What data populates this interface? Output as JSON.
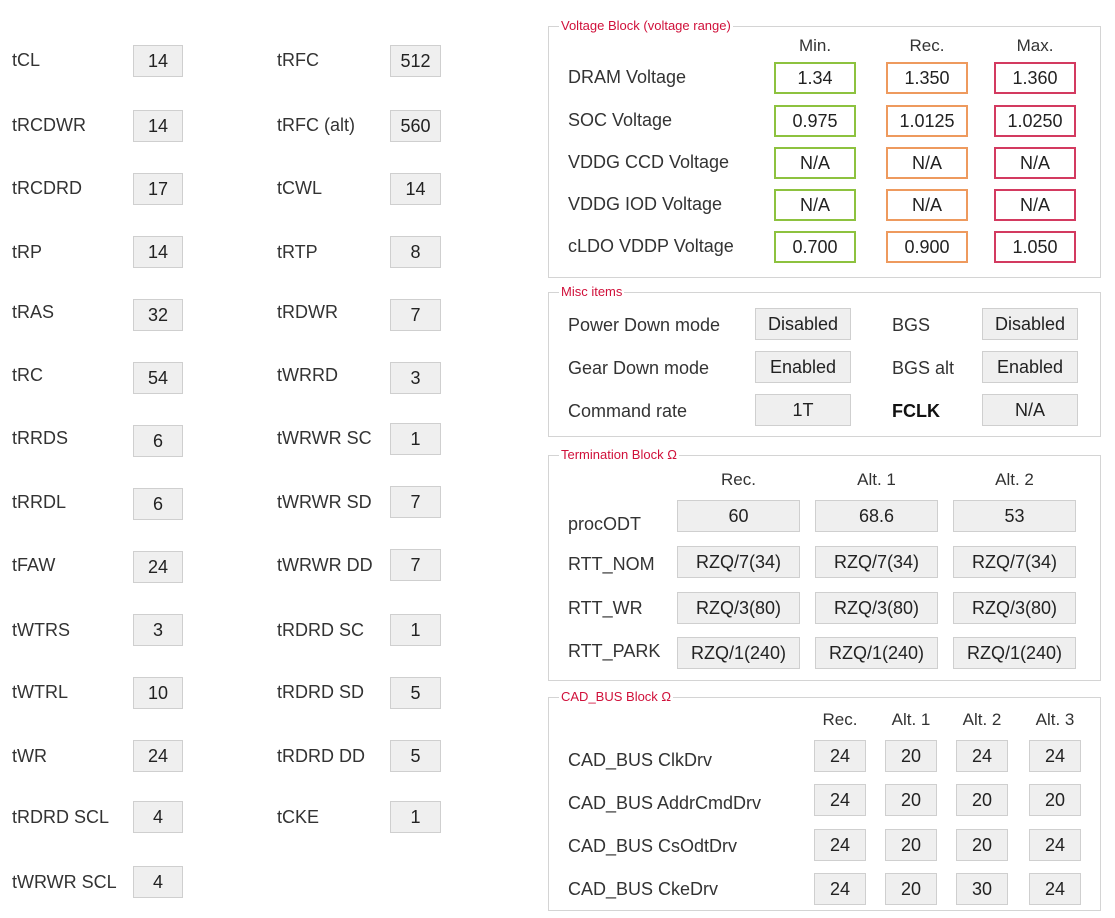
{
  "timings_col1": [
    {
      "label": "tCL",
      "value": "14"
    },
    {
      "label": "tRCDWR",
      "value": "14"
    },
    {
      "label": "tRCDRD",
      "value": "17"
    },
    {
      "label": "tRP",
      "value": "14"
    },
    {
      "label": "tRAS",
      "value": "32"
    },
    {
      "label": "tRC",
      "value": "54"
    },
    {
      "label": "tRRDS",
      "value": "6"
    },
    {
      "label": "tRRDL",
      "value": "6"
    },
    {
      "label": "tFAW",
      "value": "24"
    },
    {
      "label": "tWTRS",
      "value": "3"
    },
    {
      "label": "tWTRL",
      "value": "10"
    },
    {
      "label": "tWR",
      "value": "24"
    },
    {
      "label": "tRDRD SCL",
      "value": "4"
    },
    {
      "label": "tWRWR SCL",
      "value": "4"
    }
  ],
  "timings_col2": [
    {
      "label": "tRFC",
      "value": "512"
    },
    {
      "label": "tRFC (alt)",
      "value": "560"
    },
    {
      "label": "tCWL",
      "value": "14"
    },
    {
      "label": "tRTP",
      "value": "8"
    },
    {
      "label": "tRDWR",
      "value": "7"
    },
    {
      "label": "tWRRD",
      "value": "3"
    },
    {
      "label": "tWRWR SC",
      "value": "1"
    },
    {
      "label": "tWRWR SD",
      "value": "7"
    },
    {
      "label": "tWRWR DD",
      "value": "7"
    },
    {
      "label": "tRDRD SC",
      "value": "1"
    },
    {
      "label": "tRDRD SD",
      "value": "5"
    },
    {
      "label": "tRDRD DD",
      "value": "5"
    },
    {
      "label": "tCKE",
      "value": "1"
    }
  ],
  "voltage": {
    "title": "Voltage Block (voltage range)",
    "headers": [
      "Min.",
      "Rec.",
      "Max."
    ],
    "rows": [
      {
        "label": "DRAM Voltage",
        "min": "1.34",
        "rec": "1.350",
        "max": "1.360"
      },
      {
        "label": "SOC Voltage",
        "min": "0.975",
        "rec": "1.0125",
        "max": "1.0250"
      },
      {
        "label": "VDDG  CCD Voltage",
        "min": "N/A",
        "rec": "N/A",
        "max": "N/A"
      },
      {
        "label": "VDDG  IOD Voltage",
        "min": "N/A",
        "rec": "N/A",
        "max": "N/A"
      },
      {
        "label": "cLDO VDDP Voltage",
        "min": "0.700",
        "rec": "0.900",
        "max": "1.050"
      }
    ],
    "colors": {
      "min": "#8dc23f",
      "rec": "#ee9a5e",
      "max": "#d33a60"
    }
  },
  "misc": {
    "title": "Misc items",
    "rows": [
      {
        "label": "Power Down mode",
        "value": "Disabled",
        "label2": "BGS",
        "value2": "Disabled"
      },
      {
        "label": "Gear Down mode",
        "value": "Enabled",
        "label2": "BGS alt",
        "value2": "Enabled"
      },
      {
        "label": "Command rate",
        "value": "1T",
        "label2": "FCLK",
        "value2": "N/A"
      }
    ]
  },
  "termination": {
    "title": "Termination Block Ω",
    "headers": [
      "Rec.",
      "Alt. 1",
      "Alt. 2"
    ],
    "rows": [
      {
        "label": "procODT",
        "values": [
          "60",
          "68.6",
          "53"
        ]
      },
      {
        "label": "RTT_NOM",
        "values": [
          "RZQ/7(34)",
          "RZQ/7(34)",
          "RZQ/7(34)"
        ]
      },
      {
        "label": "RTT_WR",
        "values": [
          "RZQ/3(80)",
          "RZQ/3(80)",
          "RZQ/3(80)"
        ]
      },
      {
        "label": "RTT_PARK",
        "values": [
          "RZQ/1(240)",
          "RZQ/1(240)",
          "RZQ/1(240)"
        ]
      }
    ]
  },
  "cadbus": {
    "title": "CAD_BUS Block Ω",
    "headers": [
      "Rec.",
      "Alt. 1",
      "Alt. 2",
      "Alt. 3"
    ],
    "rows": [
      {
        "label": "CAD_BUS ClkDrv",
        "values": [
          "24",
          "20",
          "24",
          "24"
        ]
      },
      {
        "label": "CAD_BUS AddrCmdDrv",
        "values": [
          "24",
          "20",
          "20",
          "20"
        ]
      },
      {
        "label": "CAD_BUS CsOdtDrv",
        "values": [
          "24",
          "20",
          "20",
          "24"
        ]
      },
      {
        "label": "CAD_BUS CkeDrv",
        "values": [
          "24",
          "20",
          "30",
          "24"
        ]
      }
    ]
  }
}
